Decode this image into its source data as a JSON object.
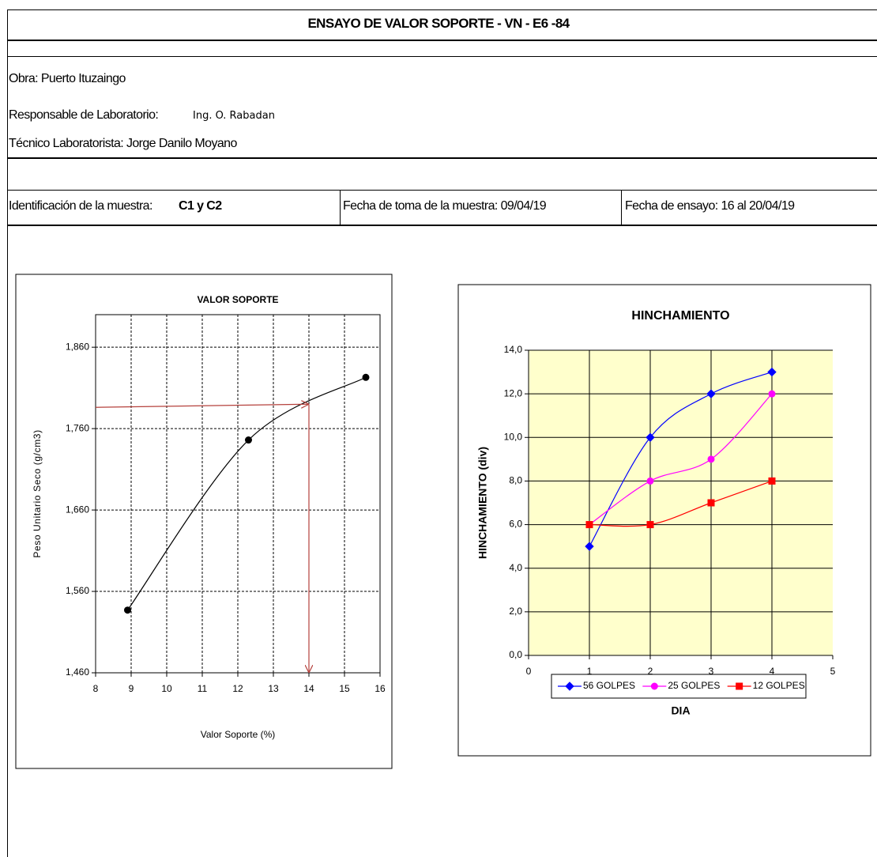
{
  "header": {
    "title": "ENSAYO DE VALOR SOPORTE - VN - E6 -84"
  },
  "info": {
    "obra": "Obra: Puerto Ituzaingo",
    "responsable_label": "Responsable de Laboratorio:",
    "responsable": "Ing. O. Rabadan",
    "tecnico": "Técnico Laboratorista: Jorge Danilo Moyano",
    "identificacion_label": "Identificación de la muestra:",
    "identificacion": "C1 y C2",
    "fecha_toma": "Fecha de toma de la muestra: 09/04/19",
    "fecha_ensayo": "Fecha de ensayo: 16 al 20/04/19"
  },
  "chart_data": [
    {
      "type": "scatter",
      "title": "VALOR SOPORTE",
      "x_label": "Valor Soporte (%)",
      "y_label": "Peso Unitario Seco (g/cm3)",
      "x": [
        8.9,
        12.3,
        15.6
      ],
      "values": [
        1.537,
        1.746,
        1.823
      ],
      "color": "#000000",
      "smooth": true,
      "xlim": [
        8,
        16
      ],
      "xticks": [
        8,
        9,
        10,
        11,
        12,
        13,
        14,
        15,
        16
      ],
      "ylim": [
        1.46,
        1.9
      ],
      "yticks": [
        {
          "value": 1.46,
          "label": "1,460"
        },
        {
          "value": 1.56,
          "label": "1,560"
        },
        {
          "value": 1.66,
          "label": "1,660"
        },
        {
          "value": 1.76,
          "label": "1,760"
        },
        {
          "value": 1.86,
          "label": "1,860"
        }
      ],
      "grid": true,
      "grid_style": "dashed",
      "reference": {
        "x": 14,
        "y": 1.79,
        "color": "#b5413c"
      }
    },
    {
      "type": "line",
      "title": "HINCHAMIENTO",
      "x_label": "DIA",
      "y_label": "HINCHAMIENTO (div)",
      "x": [
        1,
        2,
        3,
        4
      ],
      "smooth": true,
      "series": [
        {
          "name": "56 GOLPES",
          "color": "#0000ff",
          "marker": "diamond",
          "values": [
            5,
            10,
            12,
            13
          ]
        },
        {
          "name": "25 GOLPES",
          "color": "#ff00ff",
          "marker": "circle",
          "values": [
            6,
            8,
            9,
            12
          ]
        },
        {
          "name": "12 GOLPES",
          "color": "#ff0000",
          "marker": "square",
          "values": [
            6,
            6,
            7,
            8
          ]
        }
      ],
      "xlim": [
        0,
        5
      ],
      "xticks": [
        0,
        1,
        2,
        3,
        4,
        5
      ],
      "ylim": [
        0,
        14
      ],
      "yticks": [
        {
          "value": 0,
          "label": "0,0"
        },
        {
          "value": 2,
          "label": "2,0"
        },
        {
          "value": 4,
          "label": "4,0"
        },
        {
          "value": 6,
          "label": "6,0"
        },
        {
          "value": 8,
          "label": "8,0"
        },
        {
          "value": 10,
          "label": "10,0"
        },
        {
          "value": 12,
          "label": "12,0"
        },
        {
          "value": 14,
          "label": "14,0"
        }
      ],
      "grid": true,
      "grid_style": "solid",
      "background": "#ffffcc",
      "legend": "bottom"
    }
  ]
}
